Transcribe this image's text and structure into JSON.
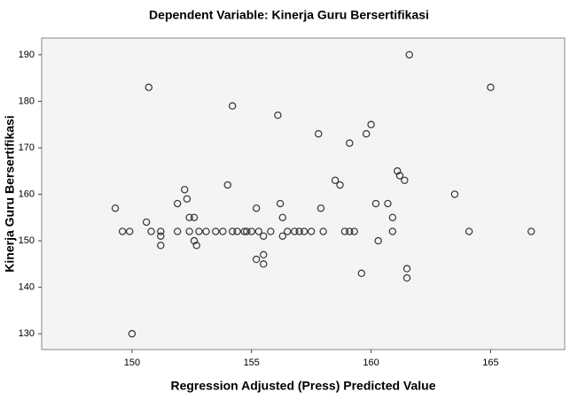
{
  "chart_data": {
    "type": "scatter",
    "title": "Dependent Variable: Kinerja Guru Bersertifikasi",
    "xlabel": "Regression Adjusted (Press) Predicted Value",
    "ylabel": "Kinerja Guru Bersertifikasi",
    "x": [
      149.3,
      149.6,
      149.9,
      150.0,
      150.7,
      150.6,
      150.8,
      151.2,
      151.2,
      151.2,
      151.9,
      151.9,
      152.2,
      152.3,
      152.4,
      152.4,
      152.6,
      152.6,
      152.7,
      152.8,
      153.1,
      153.5,
      153.8,
      154.0,
      154.2,
      154.2,
      154.4,
      154.7,
      154.8,
      155.0,
      155.2,
      155.2,
      155.3,
      155.5,
      155.5,
      155.5,
      155.8,
      156.1,
      156.2,
      156.3,
      156.3,
      156.5,
      156.8,
      157.0,
      157.2,
      157.5,
      157.8,
      157.9,
      158.0,
      158.5,
      158.7,
      158.9,
      159.1,
      159.1,
      159.3,
      159.6,
      159.8,
      160.0,
      160.2,
      160.3,
      160.7,
      160.9,
      160.9,
      161.1,
      161.2,
      161.4,
      161.5,
      161.5,
      161.6,
      163.5,
      164.1,
      165.0,
      166.7
    ],
    "values": [
      157,
      152,
      152,
      130,
      183,
      154,
      152,
      152,
      151,
      149,
      152,
      158,
      161,
      159,
      155,
      152,
      155,
      150,
      149,
      152,
      152,
      152,
      152,
      162,
      179,
      152,
      152,
      152,
      152,
      152,
      157,
      146,
      152,
      147,
      145,
      151,
      152,
      177,
      158,
      155,
      151,
      152,
      152,
      152,
      152,
      152,
      173,
      157,
      152,
      163,
      162,
      152,
      152,
      171,
      152,
      143,
      173,
      175,
      158,
      150,
      158,
      155,
      152,
      165,
      164,
      163,
      144,
      142,
      190,
      160,
      152,
      183,
      152
    ],
    "color": "#333333",
    "xlim": [
      146.22,
      168.1
    ],
    "ylim": [
      126.6,
      193.6
    ],
    "xticks": [
      150,
      155,
      160,
      165
    ],
    "yticks": [
      130,
      140,
      150,
      160,
      170,
      180,
      190
    ],
    "grid": false
  }
}
